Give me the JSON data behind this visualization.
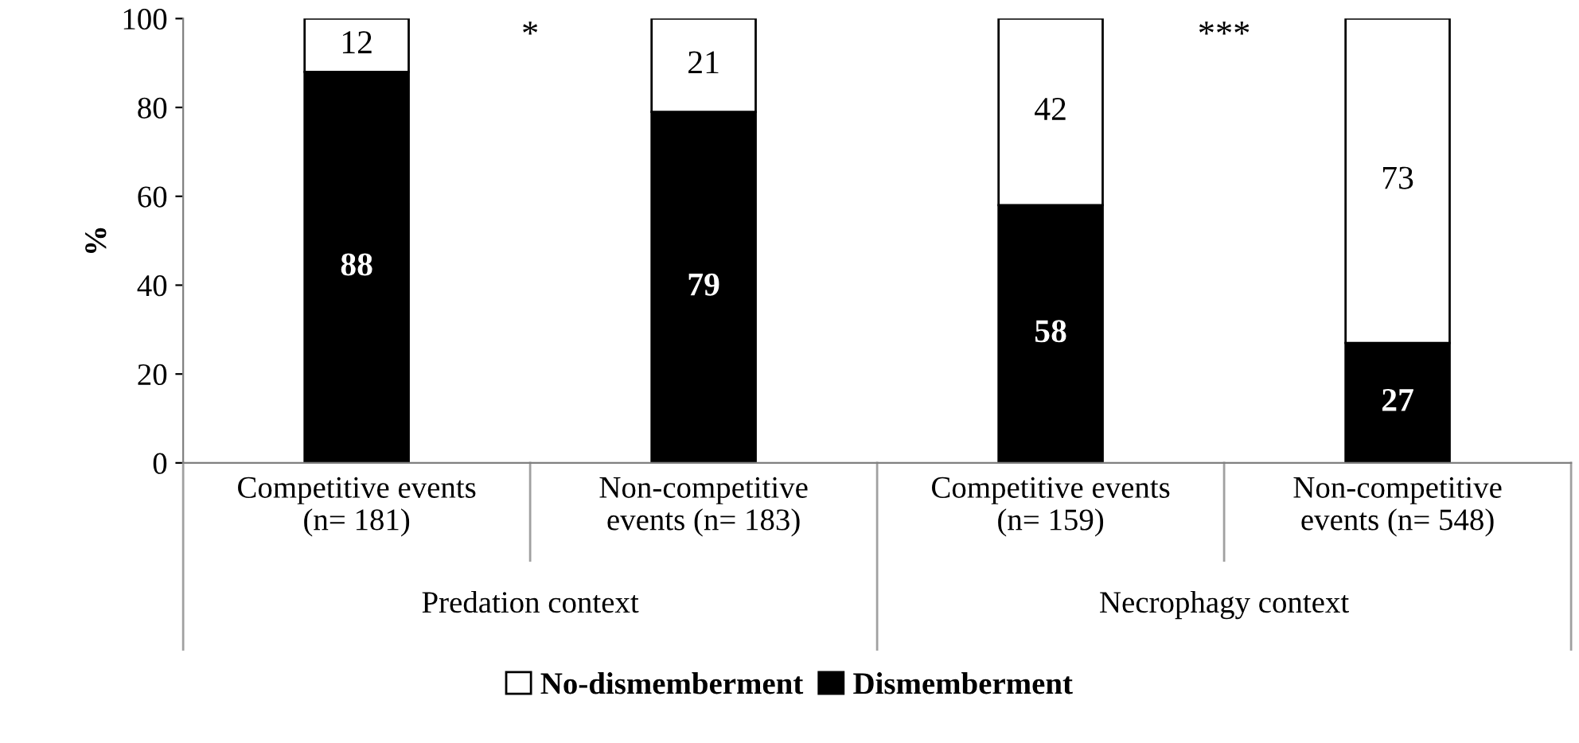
{
  "chart_data": {
    "type": "bar",
    "stacked": true,
    "ylabel": "%",
    "categories": [
      "Competitive events\n(n= 181)",
      "Non-competitive\nevents (n= 183)",
      "Competitive events\n(n= 159)",
      "Non-competitive\nevents (n= 548)"
    ],
    "series": [
      {
        "name": "Dismemberment",
        "color": "#000000",
        "values": [
          88,
          79,
          58,
          27
        ]
      },
      {
        "name": "No-dismemberment",
        "color": "#ffffff",
        "values": [
          12,
          21,
          42,
          73
        ]
      }
    ],
    "ylim": [
      0,
      100
    ],
    "yticks": [
      0,
      20,
      40,
      60,
      80,
      100
    ],
    "grid": false,
    "data_labels": true,
    "legend": "bottom",
    "annotations": [
      "*",
      "***",
      "Predation context",
      "Necrophagy context"
    ]
  }
}
